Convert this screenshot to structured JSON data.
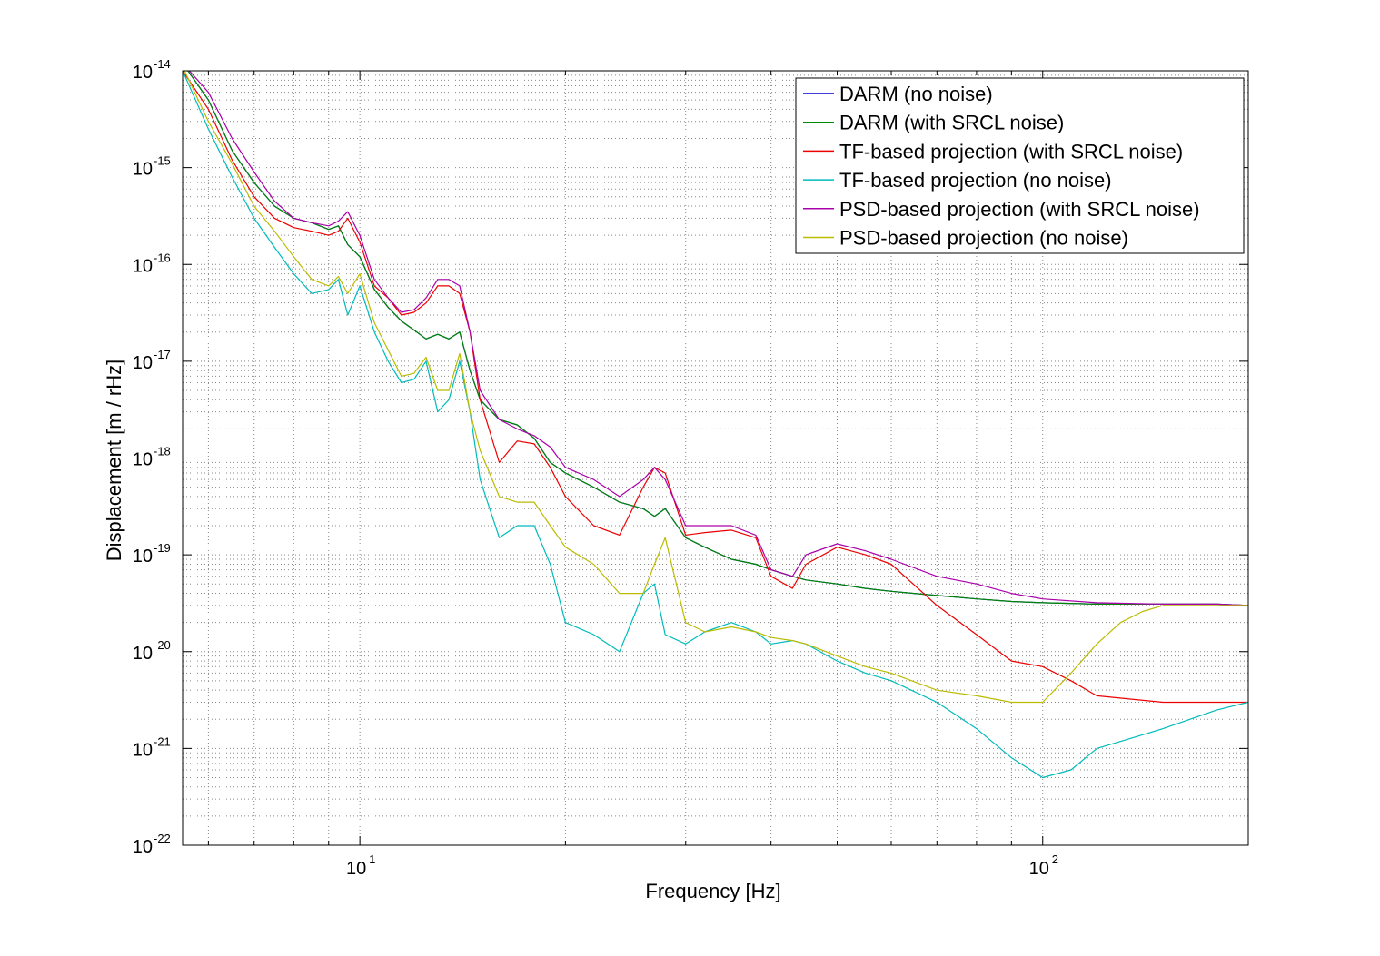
{
  "chart_data": {
    "type": "line",
    "xlabel": "Frequency [Hz]",
    "ylabel": "Displacement [m / rHz]",
    "xscale": "log",
    "yscale": "log",
    "xlim": [
      5.5,
      200
    ],
    "ylim": [
      1e-22,
      1e-14
    ],
    "grid": true,
    "legend_position": "top-right",
    "x_tick_labels": [
      {
        "base": "10",
        "exp": "1",
        "value": 10
      },
      {
        "base": "10",
        "exp": "2",
        "value": 100
      }
    ],
    "y_tick_labels": [
      {
        "base": "10",
        "exp": "-14",
        "value": 1e-14
      },
      {
        "base": "10",
        "exp": "-15",
        "value": 1e-15
      },
      {
        "base": "10",
        "exp": "-16",
        "value": 1e-16
      },
      {
        "base": "10",
        "exp": "-17",
        "value": 1e-17
      },
      {
        "base": "10",
        "exp": "-18",
        "value": 1e-18
      },
      {
        "base": "10",
        "exp": "-19",
        "value": 1e-19
      },
      {
        "base": "10",
        "exp": "-20",
        "value": 1e-20
      },
      {
        "base": "10",
        "exp": "-21",
        "value": 1e-21
      },
      {
        "base": "10",
        "exp": "-22",
        "value": 1e-22
      }
    ],
    "series": [
      {
        "name": "DARM (no noise)",
        "color": "#0000cc",
        "x": [
          5.5,
          6.0,
          6.5,
          7.0,
          7.5,
          8.0,
          8.5,
          9.0,
          9.3,
          9.6,
          10.0,
          10.5,
          11.0,
          11.5,
          12.0,
          12.5,
          13.0,
          13.5,
          14.0,
          14.5,
          15.0,
          16.0,
          17.0,
          18.0,
          19.0,
          20.0,
          22.0,
          24.0,
          26.0,
          27.0,
          28.0,
          30.0,
          32.0,
          35.0,
          38.0,
          40.0,
          43.0,
          45.0,
          50.0,
          55.0,
          60.0,
          70.0,
          80.0,
          90.0,
          100.0,
          120.0,
          150.0,
          180.0,
          200.0
        ],
        "y": [
          1.2e-14,
          5e-15,
          1.5e-15,
          7e-16,
          4e-16,
          3e-16,
          2.7e-16,
          2.3e-16,
          2.5e-16,
          1.6e-16,
          1.2e-16,
          5.5e-17,
          3.6e-17,
          2.6e-17,
          2.1e-17,
          1.7e-17,
          1.9e-17,
          1.7e-17,
          2e-17,
          8e-18,
          4e-18,
          2.5e-18,
          2.2e-18,
          1.6e-18,
          9e-19,
          7e-19,
          5e-19,
          3.5e-19,
          3e-19,
          2.5e-19,
          3e-19,
          1.5e-19,
          1.2e-19,
          9e-20,
          8e-20,
          7e-20,
          6e-20,
          5.5e-20,
          5e-20,
          4.5e-20,
          4.2e-20,
          3.8e-20,
          3.5e-20,
          3.3e-20,
          3.2e-20,
          3.1e-20,
          3.1e-20,
          3.1e-20,
          3e-20
        ]
      },
      {
        "name": "DARM (with SRCL noise)",
        "color": "#008800",
        "x": [
          5.5,
          6.0,
          6.5,
          7.0,
          7.5,
          8.0,
          8.5,
          9.0,
          9.3,
          9.6,
          10.0,
          10.5,
          11.0,
          11.5,
          12.0,
          12.5,
          13.0,
          13.5,
          14.0,
          14.5,
          15.0,
          16.0,
          17.0,
          18.0,
          19.0,
          20.0,
          22.0,
          24.0,
          26.0,
          27.0,
          28.0,
          30.0,
          32.0,
          35.0,
          38.0,
          40.0,
          43.0,
          45.0,
          50.0,
          55.0,
          60.0,
          70.0,
          80.0,
          90.0,
          100.0,
          120.0,
          150.0,
          180.0,
          200.0
        ],
        "y": [
          1.2e-14,
          5e-15,
          1.5e-15,
          7e-16,
          4e-16,
          3e-16,
          2.7e-16,
          2.3e-16,
          2.5e-16,
          1.6e-16,
          1.2e-16,
          5.5e-17,
          3.6e-17,
          2.6e-17,
          2.1e-17,
          1.7e-17,
          1.9e-17,
          1.7e-17,
          2e-17,
          8e-18,
          4e-18,
          2.5e-18,
          2.2e-18,
          1.6e-18,
          9e-19,
          7e-19,
          5e-19,
          3.5e-19,
          3e-19,
          2.5e-19,
          3e-19,
          1.5e-19,
          1.2e-19,
          9e-20,
          8e-20,
          7e-20,
          6e-20,
          5.5e-20,
          5e-20,
          4.5e-20,
          4.2e-20,
          3.8e-20,
          3.5e-20,
          3.3e-20,
          3.2e-20,
          3.1e-20,
          3.1e-20,
          3.1e-20,
          3e-20
        ]
      },
      {
        "name": "TF-based projection (with SRCL noise)",
        "color": "#ee0000",
        "x": [
          5.5,
          6.0,
          6.5,
          7.0,
          7.5,
          8.0,
          8.5,
          9.0,
          9.3,
          9.6,
          10.0,
          10.5,
          11.0,
          11.5,
          12.0,
          12.5,
          13.0,
          13.5,
          14.0,
          14.5,
          15.0,
          16.0,
          17.0,
          18.0,
          19.0,
          20.0,
          22.0,
          24.0,
          26.0,
          27.0,
          28.0,
          30.0,
          32.0,
          35.0,
          38.0,
          40.0,
          43.0,
          45.0,
          50.0,
          55.0,
          60.0,
          70.0,
          80.0,
          90.0,
          100.0,
          110.0,
          120.0,
          150.0,
          180.0,
          200.0
        ],
        "y": [
          1e-14,
          4e-15,
          1.2e-15,
          5e-16,
          3e-16,
          2.4e-16,
          2.2e-16,
          2e-16,
          2.2e-16,
          3e-16,
          1.7e-16,
          6e-17,
          4.5e-17,
          3e-17,
          3.2e-17,
          4e-17,
          6e-17,
          6e-17,
          5e-17,
          2e-17,
          4e-18,
          9e-19,
          1.5e-18,
          1.4e-18,
          8e-19,
          4e-19,
          2e-19,
          1.6e-19,
          5e-19,
          8e-19,
          7e-19,
          1.6e-19,
          1.7e-19,
          1.8e-19,
          1.5e-19,
          6e-20,
          4.5e-20,
          8e-20,
          1.2e-19,
          1e-19,
          8e-20,
          3e-20,
          1.5e-20,
          8e-21,
          7e-21,
          5e-21,
          3.5e-21,
          3e-21,
          3e-21,
          3e-21
        ]
      },
      {
        "name": "TF-based projection (no noise)",
        "color": "#00bbbb",
        "x": [
          5.5,
          6.0,
          6.5,
          7.0,
          7.5,
          8.0,
          8.5,
          9.0,
          9.3,
          9.6,
          10.0,
          10.5,
          11.0,
          11.5,
          12.0,
          12.5,
          13.0,
          13.5,
          14.0,
          14.5,
          15.0,
          16.0,
          17.0,
          18.0,
          19.0,
          20.0,
          22.0,
          24.0,
          26.0,
          27.0,
          28.0,
          30.0,
          32.0,
          35.0,
          38.0,
          40.0,
          43.0,
          45.0,
          50.0,
          55.0,
          60.0,
          70.0,
          80.0,
          90.0,
          100.0,
          110.0,
          120.0,
          150.0,
          180.0,
          200.0
        ],
        "y": [
          1e-14,
          2.5e-15,
          8e-16,
          3e-16,
          1.5e-16,
          8e-17,
          5e-17,
          5.5e-17,
          7e-17,
          3e-17,
          6e-17,
          2e-17,
          1e-17,
          6e-18,
          6.5e-18,
          1e-17,
          3e-18,
          4e-18,
          1e-17,
          3e-18,
          6e-19,
          1.5e-19,
          2e-19,
          2e-19,
          8e-20,
          2e-20,
          1.5e-20,
          1e-20,
          4e-20,
          5e-20,
          1.5e-20,
          1.2e-20,
          1.6e-20,
          2e-20,
          1.6e-20,
          1.2e-20,
          1.3e-20,
          1.2e-20,
          8e-21,
          6e-21,
          5e-21,
          3e-21,
          1.6e-21,
          8e-22,
          5e-22,
          6e-22,
          1e-21,
          1.6e-21,
          2.5e-21,
          3e-21
        ]
      },
      {
        "name": "PSD-based projection (with SRCL noise)",
        "color": "#aa00aa",
        "x": [
          5.5,
          6.0,
          6.5,
          7.0,
          7.5,
          8.0,
          8.5,
          9.0,
          9.3,
          9.6,
          10.0,
          10.5,
          11.0,
          11.5,
          12.0,
          12.5,
          13.0,
          13.5,
          14.0,
          14.5,
          15.0,
          16.0,
          17.0,
          18.0,
          19.0,
          20.0,
          22.0,
          24.0,
          26.0,
          27.0,
          28.0,
          30.0,
          32.0,
          35.0,
          38.0,
          40.0,
          43.0,
          45.0,
          50.0,
          55.0,
          60.0,
          70.0,
          80.0,
          90.0,
          100.0,
          120.0,
          150.0,
          180.0,
          200.0
        ],
        "y": [
          1.2e-14,
          6e-15,
          2e-15,
          9e-16,
          4.5e-16,
          3e-16,
          2.7e-16,
          2.5e-16,
          2.8e-16,
          3.5e-16,
          2e-16,
          7e-17,
          4.5e-17,
          3.2e-17,
          3.4e-17,
          4.5e-17,
          7e-17,
          7e-17,
          6e-17,
          2e-17,
          5e-18,
          2.5e-18,
          2e-18,
          1.7e-18,
          1.3e-18,
          8e-19,
          6e-19,
          4e-19,
          6e-19,
          8e-19,
          6e-19,
          2e-19,
          2e-19,
          2e-19,
          1.6e-19,
          7e-20,
          6e-20,
          1e-19,
          1.3e-19,
          1.1e-19,
          9e-20,
          6e-20,
          5e-20,
          4e-20,
          3.5e-20,
          3.2e-20,
          3.1e-20,
          3.1e-20,
          3e-20
        ]
      },
      {
        "name": "PSD-based projection (no noise)",
        "color": "#bbbb00",
        "x": [
          5.5,
          6.0,
          6.5,
          7.0,
          7.5,
          8.0,
          8.5,
          9.0,
          9.3,
          9.6,
          10.0,
          10.5,
          11.0,
          11.5,
          12.0,
          12.5,
          13.0,
          13.5,
          14.0,
          14.5,
          15.0,
          16.0,
          17.0,
          18.0,
          19.0,
          20.0,
          22.0,
          24.0,
          26.0,
          27.0,
          28.0,
          30.0,
          32.0,
          35.0,
          38.0,
          40.0,
          43.0,
          45.0,
          50.0,
          55.0,
          60.0,
          70.0,
          80.0,
          90.0,
          95.0,
          100.0,
          110.0,
          120.0,
          130.0,
          140.0,
          150.0,
          180.0,
          200.0
        ],
        "y": [
          1.1e-14,
          3e-15,
          1.1e-15,
          4e-16,
          2.2e-16,
          1.2e-16,
          7e-17,
          6e-17,
          7.5e-17,
          5e-17,
          8e-17,
          2.5e-17,
          1.3e-17,
          7e-18,
          7.5e-18,
          1.1e-17,
          5e-18,
          5e-18,
          1.2e-17,
          3e-18,
          1.2e-18,
          4e-19,
          3.5e-19,
          3.5e-19,
          2e-19,
          1.2e-19,
          8e-20,
          4e-20,
          4e-20,
          8e-20,
          1.5e-19,
          2e-20,
          1.6e-20,
          1.8e-20,
          1.6e-20,
          1.4e-20,
          1.3e-20,
          1.2e-20,
          9e-21,
          7e-21,
          6e-21,
          4e-21,
          3.5e-21,
          3e-21,
          3e-21,
          3e-21,
          6e-21,
          1.2e-20,
          2e-20,
          2.6e-20,
          3e-20,
          3e-20,
          3e-20
        ]
      }
    ]
  }
}
